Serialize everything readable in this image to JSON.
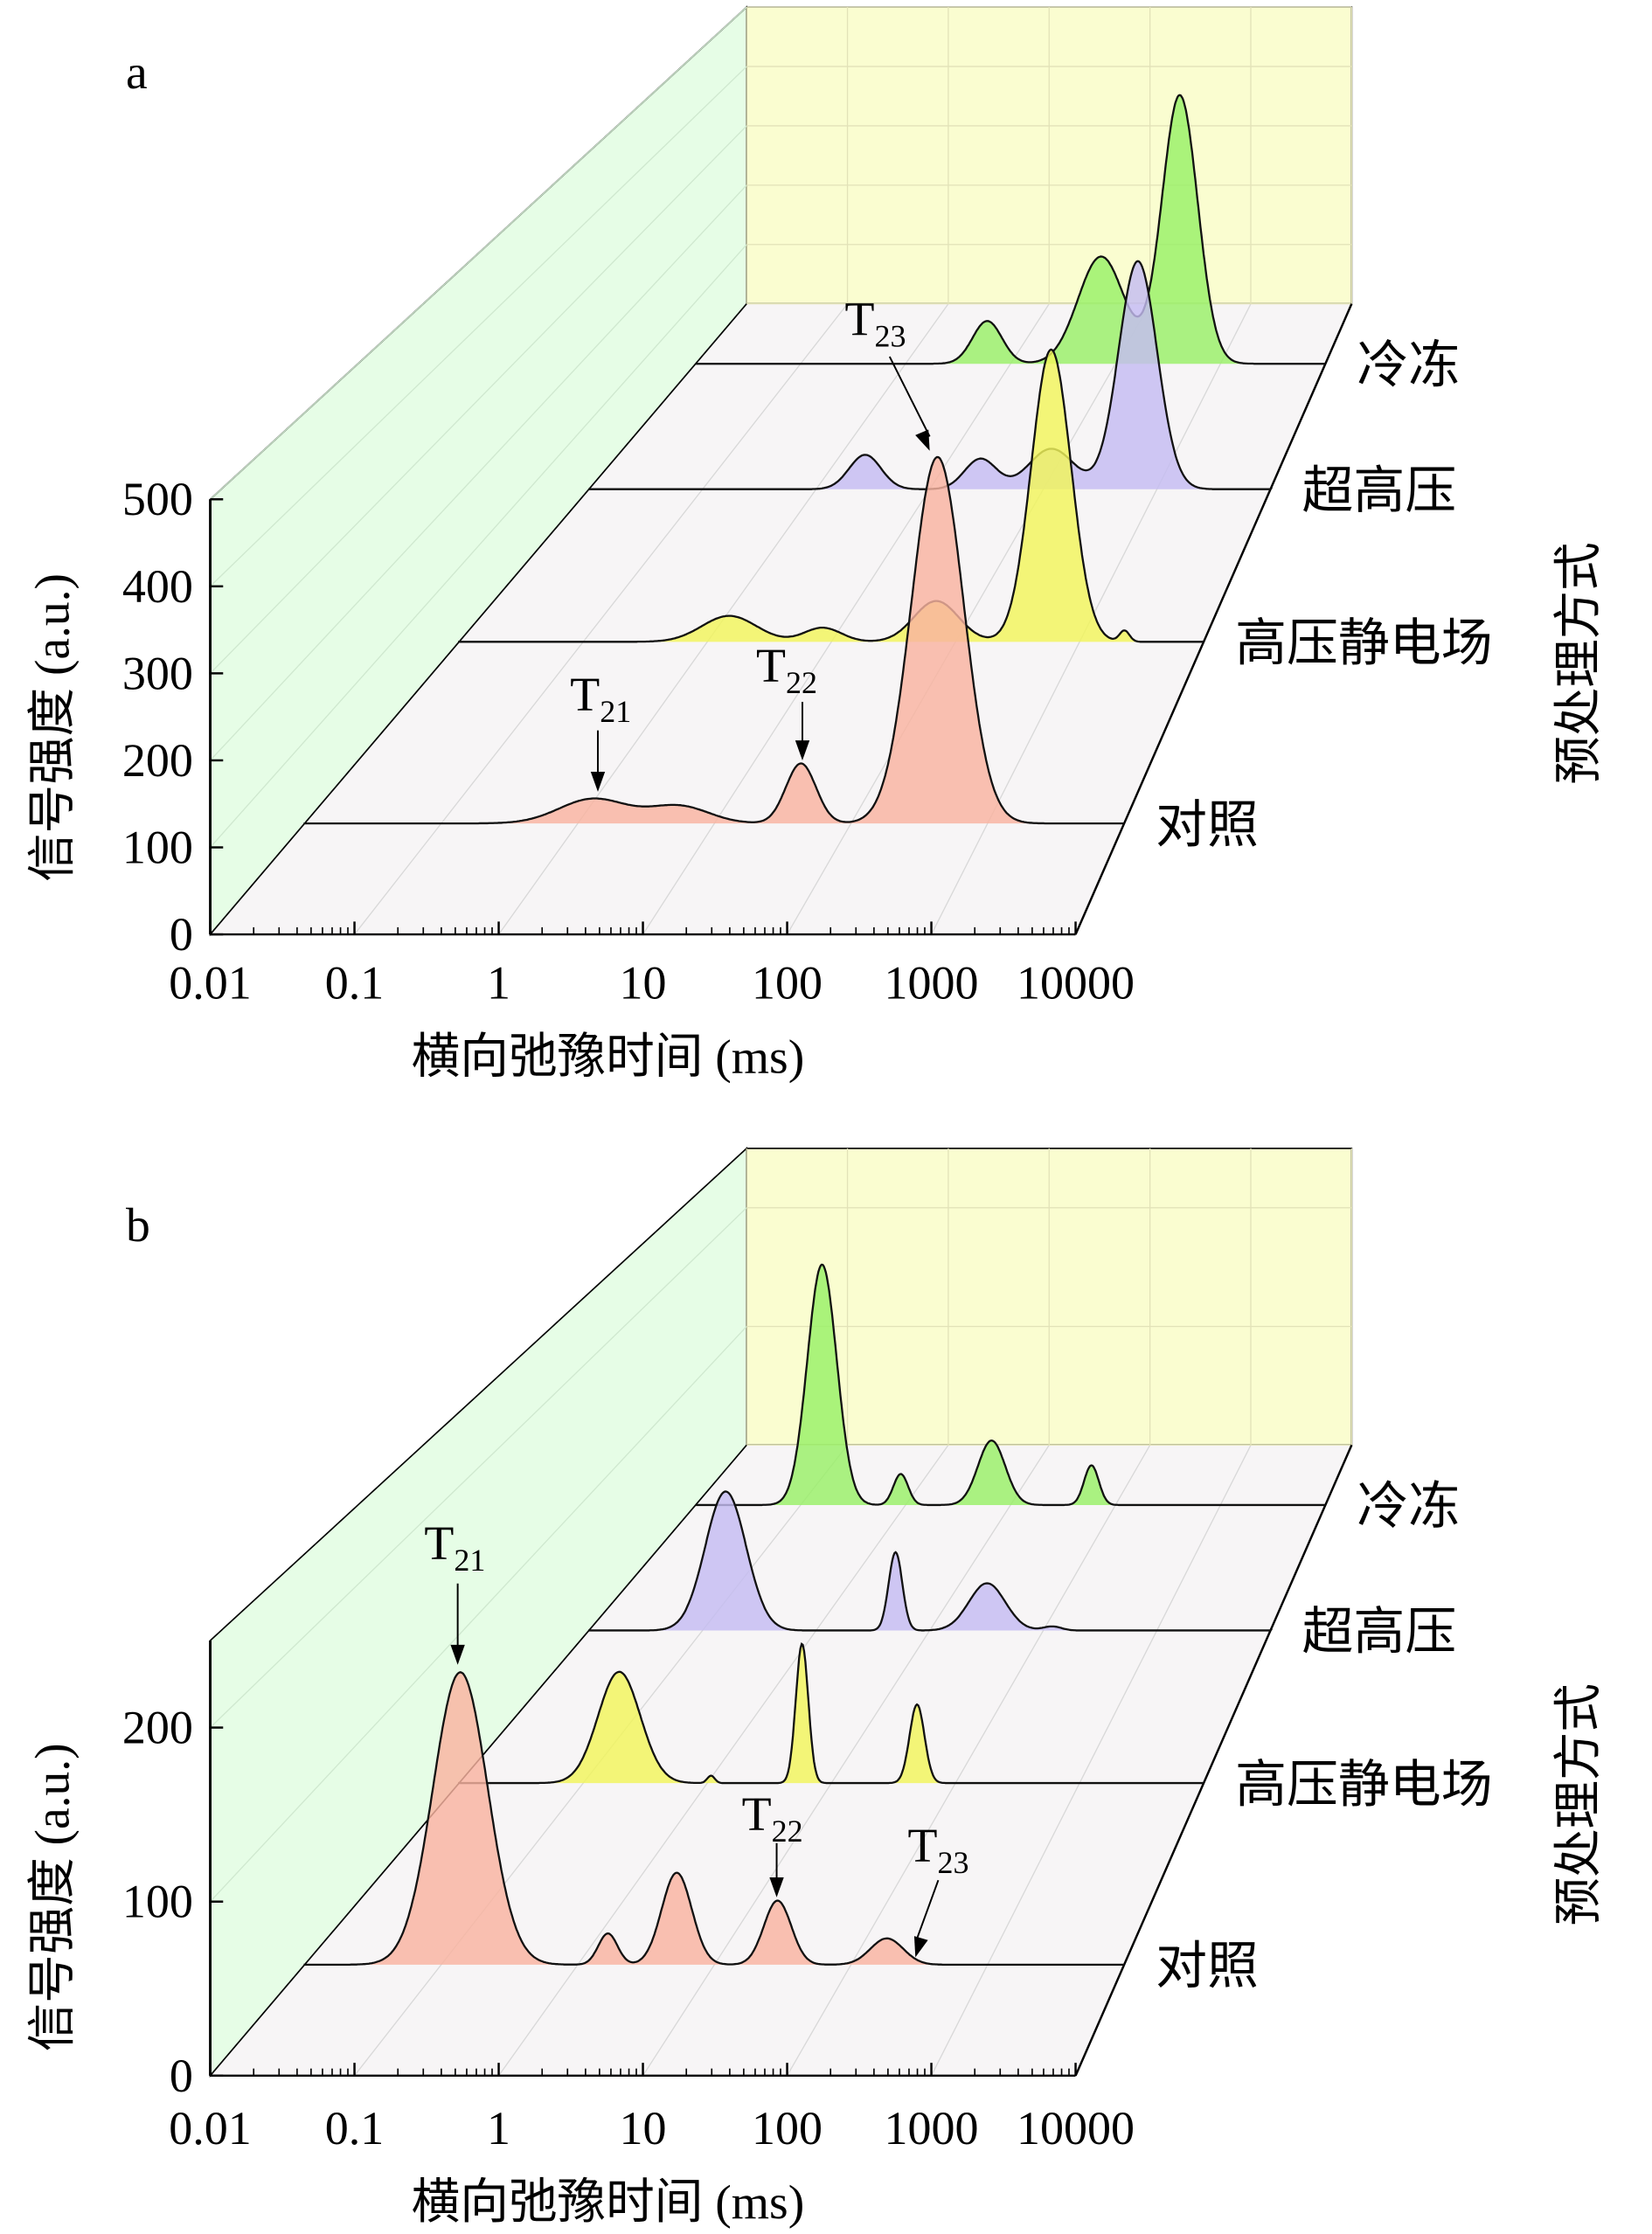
{
  "chart_data": [
    {
      "panel": "a",
      "type": "area",
      "subtype": "3d-waterfall",
      "xlabel": "横向弛豫时间 (ms)",
      "ylabel": "信号强度 (a.u.)",
      "zlabel": "预处理方式",
      "xscale": "log",
      "xlim": [
        0.01,
        10000
      ],
      "x_ticks": [
        {
          "v": 0.01,
          "label": "0.01"
        },
        {
          "v": 0.1,
          "label": "0.1"
        },
        {
          "v": 1,
          "label": "1"
        },
        {
          "v": 10,
          "label": "10"
        },
        {
          "v": 100,
          "label": "100"
        },
        {
          "v": 1000,
          "label": "1000"
        },
        {
          "v": 10000,
          "label": "10000"
        }
      ],
      "ylim": [
        0,
        500
      ],
      "y_ticks": [
        {
          "v": 0,
          "label": "0"
        },
        {
          "v": 100,
          "label": "100"
        },
        {
          "v": 200,
          "label": "200"
        },
        {
          "v": 300,
          "label": "300"
        },
        {
          "v": 400,
          "label": "400"
        },
        {
          "v": 500,
          "label": "500"
        }
      ],
      "series": [
        {
          "name": "对照",
          "color": "#f9b3a0",
          "peaks": [
            {
              "t_ms": 1.3,
              "amp": 30,
              "w": 0.25
            },
            {
              "t_ms": 5.5,
              "amp": 21,
              "w": 0.22
            },
            {
              "t_ms": 43,
              "amp": 73,
              "w": 0.11
            },
            {
              "t_ms": 430,
              "amp": 446,
              "w": 0.19
            }
          ]
        },
        {
          "name": "高压静电场",
          "color": "#f2f55a",
          "peaks": [
            {
              "t_ms": 1.5,
              "amp": 35,
              "w": 0.22
            },
            {
              "t_ms": 8.5,
              "amp": 19,
              "w": 0.15
            },
            {
              "t_ms": 70,
              "amp": 55,
              "w": 0.18
            },
            {
              "t_ms": 590,
              "amp": 394,
              "w": 0.16
            },
            {
              "t_ms": 2300,
              "amp": 15,
              "w": 0.04
            }
          ]
        },
        {
          "name": "超高压",
          "color": "#c4bcf2",
          "peaks": [
            {
              "t_ms": 2.7,
              "amp": 51,
              "w": 0.14
            },
            {
              "t_ms": 28,
              "amp": 45,
              "w": 0.14
            },
            {
              "t_ms": 118,
              "amp": 60,
              "w": 0.2
            },
            {
              "t_ms": 680,
              "amp": 338,
              "w": 0.17
            }
          ]
        },
        {
          "name": "冷冻",
          "color": "#98f066",
          "peaks": [
            {
              "t_ms": 6,
              "amp": 69,
              "w": 0.14
            },
            {
              "t_ms": 73,
              "amp": 173,
              "w": 0.22
            },
            {
              "t_ms": 410,
              "amp": 433,
              "w": 0.17
            }
          ]
        }
      ],
      "annotations": [
        {
          "label": "T",
          "sub": "21",
          "series": "对照",
          "t_ms": 1.3
        },
        {
          "label": "T",
          "sub": "22",
          "series": "对照",
          "t_ms": 43
        },
        {
          "label": "T",
          "sub": "23",
          "series": "对照",
          "t_ms": 430
        }
      ]
    },
    {
      "panel": "b",
      "type": "area",
      "subtype": "3d-waterfall",
      "xlabel": "横向弛豫时间 (ms)",
      "ylabel": "信号强度 (a.u.)",
      "zlabel": "预处理方式",
      "xscale": "log",
      "xlim": [
        0.01,
        10000
      ],
      "x_ticks": [
        {
          "v": 0.01,
          "label": "0.01"
        },
        {
          "v": 0.1,
          "label": "0.1"
        },
        {
          "v": 1,
          "label": "1"
        },
        {
          "v": 10,
          "label": "10"
        },
        {
          "v": 100,
          "label": "100"
        },
        {
          "v": 1000,
          "label": "1000"
        },
        {
          "v": 10000,
          "label": "10000"
        }
      ],
      "ylim": [
        0,
        250
      ],
      "y_ticks": [
        {
          "v": 0,
          "label": "0"
        },
        {
          "v": 100,
          "label": "100"
        },
        {
          "v": 200,
          "label": "200"
        }
      ],
      "series": [
        {
          "name": "对照",
          "color": "#f9b3a0",
          "peaks": [
            {
              "t_ms": 0.138,
              "amp": 178,
              "w": 0.2
            },
            {
              "t_ms": 1.66,
              "amp": 19,
              "w": 0.07
            },
            {
              "t_ms": 5.3,
              "amp": 56,
              "w": 0.11
            },
            {
              "t_ms": 29,
              "amp": 39,
              "w": 0.1
            },
            {
              "t_ms": 183,
              "amp": 16,
              "w": 0.12
            }
          ]
        },
        {
          "name": "高压静电场",
          "color": "#f2f55a",
          "peaks": [
            {
              "t_ms": 0.195,
              "amp": 75,
              "w": 0.17
            },
            {
              "t_ms": 1.07,
              "amp": 5,
              "w": 0.03
            },
            {
              "t_ms": 5.8,
              "amp": 94,
              "w": 0.05
            },
            {
              "t_ms": 49,
              "amp": 53,
              "w": 0.06
            }
          ]
        },
        {
          "name": "超高压",
          "color": "#c4bcf2",
          "peaks": [
            {
              "t_ms": 0.16,
              "amp": 103,
              "w": 0.18
            },
            {
              "t_ms": 5,
              "amp": 58,
              "w": 0.06
            },
            {
              "t_ms": 32,
              "amp": 35,
              "w": 0.16
            },
            {
              "t_ms": 120,
              "amp": 3,
              "w": 0.08
            }
          ]
        },
        {
          "name": "冷冻",
          "color": "#98f066",
          "peaks": [
            {
              "t_ms": 0.16,
              "amp": 194,
              "w": 0.14
            },
            {
              "t_ms": 0.9,
              "amp": 25,
              "w": 0.07
            },
            {
              "t_ms": 6.6,
              "amp": 52,
              "w": 0.13
            },
            {
              "t_ms": 59,
              "amp": 32,
              "w": 0.07
            }
          ]
        }
      ],
      "annotations": [
        {
          "label": "T",
          "sub": "21",
          "series": "对照",
          "t_ms": 0.138
        },
        {
          "label": "T",
          "sub": "22",
          "series": "对照",
          "t_ms": 29
        },
        {
          "label": "T",
          "sub": "23",
          "series": "对照",
          "t_ms": 183
        }
      ]
    }
  ],
  "colors": {
    "left_wall": "#e6fde6",
    "back_wall": "#fafdd0",
    "floor": "#f7f5f6"
  }
}
